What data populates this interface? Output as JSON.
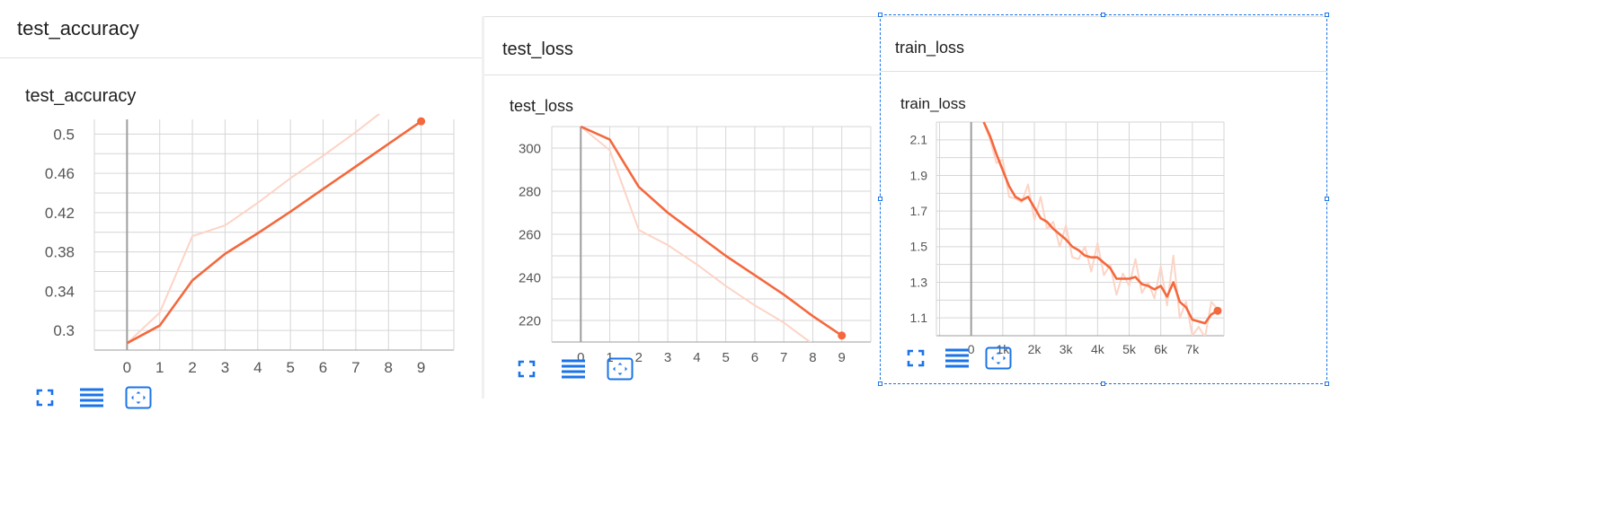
{
  "colors": {
    "accent": "#f4683d",
    "raw": "#fcd4c6",
    "icon": "#1a73e8",
    "grid": "#d6d6d6",
    "axis": "#9e9e9e"
  },
  "icons": {
    "fullscreen": "fullscreen-icon",
    "data_table": "list-icon",
    "fit_domain": "fit-domain-icon"
  },
  "cards": [
    {
      "header_title": "test_accuracy"
    },
    {
      "header_title": "test_loss"
    },
    {
      "header_title": "train_loss"
    }
  ],
  "chart_data": [
    {
      "type": "line",
      "title": "test_accuracy",
      "xlabel": "",
      "ylabel": "",
      "x_ticks": [
        "0",
        "1",
        "2",
        "3",
        "4",
        "5",
        "6",
        "7",
        "8",
        "9"
      ],
      "y_ticks": [
        "0.3",
        "0.34",
        "0.38",
        "0.42",
        "0.46",
        "0.5"
      ],
      "xlim": [
        -1,
        10
      ],
      "ylim": [
        0.28,
        0.515
      ],
      "grid": true,
      "series": [
        {
          "kind": "raw",
          "x": [
            0,
            1,
            2,
            3,
            4,
            5,
            6,
            7,
            8,
            9
          ],
          "y": [
            0.287,
            0.318,
            0.396,
            0.407,
            0.43,
            0.455,
            0.478,
            0.502,
            0.528,
            0.552
          ]
        },
        {
          "kind": "smoothed",
          "x": [
            0,
            1,
            2,
            3,
            4,
            5,
            6,
            7,
            8,
            9
          ],
          "y": [
            0.287,
            0.305,
            0.351,
            0.378,
            0.399,
            0.421,
            0.444,
            0.467,
            0.49,
            0.513
          ]
        }
      ]
    },
    {
      "type": "line",
      "title": "test_loss",
      "xlabel": "",
      "ylabel": "",
      "x_ticks": [
        "0",
        "1",
        "2",
        "3",
        "4",
        "5",
        "6",
        "7",
        "8",
        "9"
      ],
      "y_ticks": [
        "220",
        "240",
        "260",
        "280",
        "300"
      ],
      "xlim": [
        -1,
        10
      ],
      "ylim": [
        210,
        310
      ],
      "grid": true,
      "series": [
        {
          "kind": "raw",
          "x": [
            0,
            1,
            2,
            3,
            4,
            5,
            6,
            7,
            8,
            9
          ],
          "y": [
            310,
            299,
            262,
            255,
            246,
            236,
            227,
            219,
            209,
            199
          ]
        },
        {
          "kind": "smoothed",
          "x": [
            0,
            1,
            2,
            3,
            4,
            5,
            6,
            7,
            8,
            9
          ],
          "y": [
            310,
            304,
            282,
            270,
            260,
            250,
            241,
            232,
            222,
            213
          ]
        }
      ]
    },
    {
      "type": "line",
      "title": "train_loss",
      "xlabel": "",
      "ylabel": "",
      "x_ticks": [
        "0",
        "1k",
        "2k",
        "3k",
        "4k",
        "5k",
        "6k",
        "7k"
      ],
      "y_ticks": [
        "1.1",
        "1.3",
        "1.5",
        "1.7",
        "1.9",
        "2.1"
      ],
      "xlim": [
        -1100,
        8000
      ],
      "ylim": [
        1.0,
        2.2
      ],
      "grid": true,
      "series": [
        {
          "kind": "raw",
          "x": [
            400,
            600,
            800,
            1000,
            1200,
            1400,
            1600,
            1800,
            2000,
            2200,
            2400,
            2600,
            2800,
            3000,
            3200,
            3400,
            3600,
            3800,
            4000,
            4200,
            4400,
            4600,
            4800,
            5000,
            5200,
            5400,
            5600,
            5800,
            6000,
            6200,
            6400,
            6600,
            6800,
            7000,
            7200,
            7400,
            7600,
            7800
          ],
          "y": [
            2.2,
            2.1,
            1.97,
            1.99,
            1.78,
            1.77,
            1.75,
            1.85,
            1.65,
            1.78,
            1.6,
            1.64,
            1.5,
            1.62,
            1.44,
            1.43,
            1.5,
            1.36,
            1.52,
            1.34,
            1.4,
            1.23,
            1.35,
            1.28,
            1.43,
            1.24,
            1.3,
            1.21,
            1.39,
            1.17,
            1.45,
            1.1,
            1.19,
            1.0,
            1.05,
            0.99,
            1.19,
            1.15
          ]
        },
        {
          "kind": "smoothed",
          "x": [
            400,
            600,
            800,
            1000,
            1200,
            1400,
            1600,
            1800,
            2000,
            2200,
            2400,
            2600,
            2800,
            3000,
            3200,
            3400,
            3600,
            3800,
            4000,
            4200,
            4400,
            4600,
            4800,
            5000,
            5200,
            5400,
            5600,
            5800,
            6000,
            6200,
            6400,
            6600,
            6800,
            7000,
            7200,
            7400,
            7600,
            7800
          ],
          "y": [
            2.2,
            2.12,
            2.02,
            1.93,
            1.84,
            1.78,
            1.76,
            1.78,
            1.72,
            1.66,
            1.64,
            1.6,
            1.57,
            1.54,
            1.5,
            1.48,
            1.45,
            1.44,
            1.44,
            1.41,
            1.38,
            1.32,
            1.32,
            1.32,
            1.33,
            1.29,
            1.28,
            1.26,
            1.28,
            1.22,
            1.3,
            1.19,
            1.16,
            1.09,
            1.08,
            1.07,
            1.12,
            1.14
          ]
        }
      ]
    }
  ]
}
